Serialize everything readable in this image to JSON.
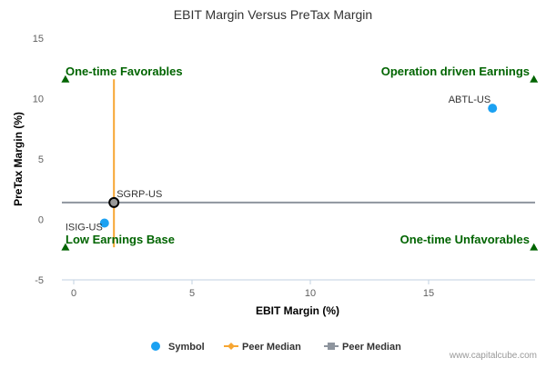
{
  "chart_data": {
    "type": "scatter",
    "title": "EBIT Margin Versus PreTax Margin",
    "xlabel": "EBIT Margin (%)",
    "ylabel": "PreTax Margin (%)",
    "xlim": [
      -0.5,
      19.5
    ],
    "ylim": [
      -5,
      15
    ],
    "xticks": [
      0,
      5,
      10,
      15
    ],
    "yticks": [
      -5,
      0,
      5,
      10,
      15
    ],
    "grid": false,
    "legend_position": "bottom-center",
    "colors": {
      "symbol": "#1ba1f2",
      "peer_median_vertical": "#f7a632",
      "peer_median_horizontal": "#8e959e",
      "quadrant_label": "#006400",
      "axis_line": "#c0d0e0",
      "title": "#333333"
    },
    "points": [
      {
        "label": "ABTL-US",
        "x": 17.7,
        "y": 9.2
      },
      {
        "label": "SGRP-US",
        "x": 1.7,
        "y": 1.4,
        "highlighted": true
      },
      {
        "label": "ISIG-US",
        "x": 1.3,
        "y": -0.3
      }
    ],
    "peer_median": {
      "x": 1.7,
      "y": 1.4
    },
    "quadrant_labels": [
      {
        "text": "One-time Favorables",
        "position": "top-left"
      },
      {
        "text": "Operation driven Earnings",
        "position": "top-right"
      },
      {
        "text": "Low Earnings Base",
        "position": "bottom-left"
      },
      {
        "text": "One-time Unfavorables",
        "position": "bottom-right"
      }
    ],
    "legend": [
      {
        "name": "Symbol",
        "marker": "circle"
      },
      {
        "name": "Peer Median",
        "marker": "diamond-line"
      },
      {
        "name": "Peer Median",
        "marker": "square-line"
      }
    ]
  },
  "credit": "www.capitalcube.com"
}
